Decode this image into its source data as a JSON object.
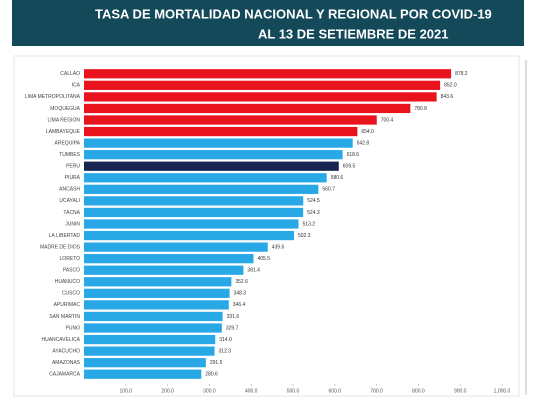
{
  "chart_data": {
    "type": "hbar",
    "title_lines": [
      "TASA DE MORTALIDAD NACIONAL Y REGIONAL POR COVID-19",
      "AL 13 DE SETIEMBRE DE 2021"
    ],
    "categories": [
      "CALLAO",
      "ICA",
      "LIMA METROPOLITANA",
      "MOQUEGUA",
      "LIMA REGION",
      "LAMBAYEQUE",
      "AREQUIPA",
      "TUMBES",
      "PERU",
      "PIURA",
      "ANCASH",
      "UCAYALI",
      "TACNA",
      "JUNIN",
      "LA LIBERTAD",
      "MADRE DE DIOS",
      "LORETO",
      "PASCO",
      "HUANUCO",
      "CUSCO",
      "APURIMAC",
      "SAN MARTIN",
      "PUNO",
      "HUANCAVELICA",
      "AYACUCHO",
      "AMAZONAS",
      "CAJAMARCA"
    ],
    "values": [
      878.2,
      852.0,
      843.6,
      780.8,
      700.4,
      654.0,
      642.8,
      618.6,
      609.5,
      580.6,
      560.7,
      524.5,
      524.3,
      513.2,
      502.3,
      439.6,
      405.5,
      381.4,
      352.6,
      348.3,
      346.4,
      331.6,
      329.7,
      314.0,
      312.3,
      291.5,
      280.6
    ],
    "value_labels": [
      "878.2",
      "852.0",
      "843.6",
      "780.8",
      "700.4",
      "654.0",
      "642.8",
      "618.6",
      "609.5",
      "580.6",
      "560.7",
      "524.5",
      "524.3",
      "513.2",
      "502.3",
      "439.6",
      "405.5",
      "381.4",
      "352.6",
      "348.3",
      "346.4",
      "331.6",
      "329.7",
      "314.0",
      "312.3",
      "291.5",
      "280.6"
    ],
    "colors": [
      "#e8131c",
      "#e8131c",
      "#e8131c",
      "#e8131c",
      "#e8131c",
      "#e8131c",
      "#29a8e6",
      "#29a8e6",
      "#16254f",
      "#29a8e6",
      "#29a8e6",
      "#29a8e6",
      "#29a8e6",
      "#29a8e6",
      "#29a8e6",
      "#29a8e6",
      "#29a8e6",
      "#29a8e6",
      "#29a8e6",
      "#29a8e6",
      "#29a8e6",
      "#29a8e6",
      "#29a8e6",
      "#29a8e6",
      "#29a8e6",
      "#29a8e6",
      "#29a8e6"
    ],
    "xlim": [
      0,
      1000
    ],
    "xticks": [
      {
        "value": 100,
        "label": "100.0"
      },
      {
        "value": 200,
        "label": "200.0"
      },
      {
        "value": 300,
        "label": "300.0"
      },
      {
        "value": 400,
        "label": "400.0"
      },
      {
        "value": 500,
        "label": "500.0"
      },
      {
        "value": 600,
        "label": "600.0"
      },
      {
        "value": 700,
        "label": "700.0"
      },
      {
        "value": 800,
        "label": "800.0"
      },
      {
        "value": 900,
        "label": "900.0"
      },
      {
        "value": 1000,
        "label": "1,000.0"
      }
    ]
  }
}
